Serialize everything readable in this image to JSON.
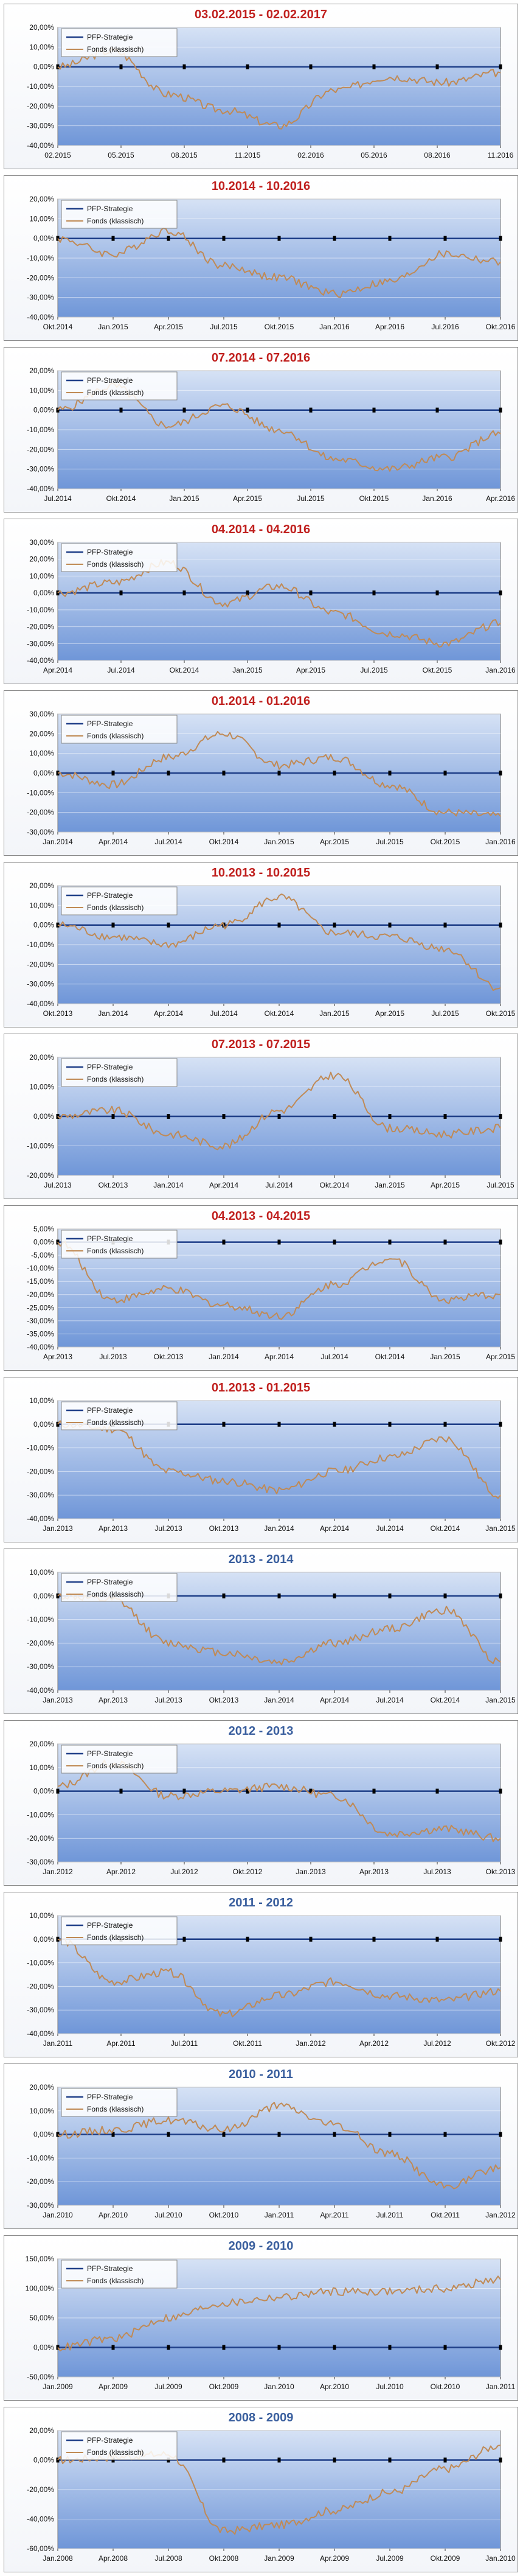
{
  "colors": {
    "plot_gradient_top": "#d6e2f5",
    "plot_gradient_bottom": "#6f96d8",
    "series_pfp": "#1f3f88",
    "series_fonds": "#c08a55",
    "title_red": "#c0201e",
    "title_blue": "#3a5f9e",
    "marker": "#000000"
  },
  "chart_data": [
    {
      "type": "line",
      "title": "03.02.2015 - 02.02.2017",
      "title_color": "red",
      "legend": [
        "PFP-Strategie",
        "Fonds (klassisch)"
      ],
      "y_ticks": [
        "20,00%",
        "10,00%",
        "0,00%",
        "-10,00%",
        "-20,00%",
        "-30,00%",
        "-40,00%"
      ],
      "ylim": [
        -40,
        20
      ],
      "x_ticks": [
        "02.2015",
        "05.2015",
        "08.2015",
        "11.2015",
        "02.2016",
        "05.2016",
        "08.2016",
        "11.2016"
      ],
      "grid": true,
      "legend_position": "top-left",
      "series": [
        {
          "name": "PFP-Strategie",
          "values": [
            0,
            0,
            0,
            0,
            0,
            0,
            0,
            0,
            0
          ]
        },
        {
          "name": "Fonds (klassisch)",
          "values": [
            0,
            8,
            -14,
            -22,
            -30,
            -12,
            -5,
            -8,
            -3
          ]
        }
      ]
    },
    {
      "type": "line",
      "title": "10.2014 - 10.2016",
      "title_color": "red",
      "legend": [
        "PFP-Strategie",
        "Fonds (klassisch)"
      ],
      "y_ticks": [
        "20,00%",
        "10,00%",
        "0,00%",
        "-10,00%",
        "-20,00%",
        "-30,00%",
        "-40,00%"
      ],
      "ylim": [
        -40,
        20
      ],
      "x_ticks": [
        "Okt.2014",
        "Jan.2015",
        "Apr.2015",
        "Jul.2015",
        "Okt.2015",
        "Jan.2016",
        "Apr.2016",
        "Jul.2016",
        "Okt.2016"
      ],
      "grid": true,
      "legend_position": "top-left",
      "series": [
        {
          "name": "PFP-Strategie",
          "values": [
            0,
            0,
            0,
            0,
            0,
            0,
            0,
            0,
            0
          ]
        },
        {
          "name": "Fonds (klassisch)",
          "values": [
            0,
            -8,
            4,
            -14,
            -20,
            -28,
            -22,
            -8,
            -12
          ]
        }
      ]
    },
    {
      "type": "line",
      "title": "07.2014 - 07.2016",
      "title_color": "red",
      "legend": [
        "PFP-Strategie",
        "Fonds (klassisch)"
      ],
      "y_ticks": [
        "20,00%",
        "10,00%",
        "0,00%",
        "-10,00%",
        "-20,00%",
        "-30,00%",
        "-40,00%"
      ],
      "ylim": [
        -40,
        20
      ],
      "x_ticks": [
        "Jul.2014",
        "Okt.2014",
        "Jan.2015",
        "Apr.2015",
        "Jul.2015",
        "Okt.2015",
        "Jan.2016",
        "Apr.2016"
      ],
      "grid": true,
      "legend_position": "top-left",
      "series": [
        {
          "name": "PFP-Strategie",
          "values": [
            0,
            0,
            0,
            0,
            0,
            0,
            0,
            0,
            0
          ]
        },
        {
          "name": "Fonds (klassisch)",
          "values": [
            0,
            12,
            -8,
            2,
            -10,
            -25,
            -30,
            -24,
            -12
          ]
        }
      ]
    },
    {
      "type": "line",
      "title": "04.2014 - 04.2016",
      "title_color": "red",
      "legend": [
        "PFP-Strategie",
        "Fonds (klassisch)"
      ],
      "y_ticks": [
        "30,00%",
        "20,00%",
        "10,00%",
        "0,00%",
        "-10,00%",
        "-20,00%",
        "-30,00%",
        "-40,00%"
      ],
      "ylim": [
        -40,
        30
      ],
      "x_ticks": [
        "Apr.2014",
        "Jul.2014",
        "Okt.2014",
        "Jan.2015",
        "Apr.2015",
        "Jul.2015",
        "Okt.2015",
        "Jan.2016"
      ],
      "grid": true,
      "legend_position": "top-left",
      "series": [
        {
          "name": "PFP-Strategie",
          "values": [
            0,
            0,
            0,
            0,
            0,
            0,
            0,
            0,
            0
          ]
        },
        {
          "name": "Fonds (klassisch)",
          "values": [
            0,
            6,
            18,
            -6,
            4,
            -12,
            -24,
            -30,
            -18
          ]
        }
      ]
    },
    {
      "type": "line",
      "title": "01.2014 - 01.2016",
      "title_color": "red",
      "legend": [
        "PFP-Strategie",
        "Fonds (klassisch)"
      ],
      "y_ticks": [
        "30,00%",
        "20,00%",
        "10,00%",
        "0,00%",
        "-10,00%",
        "-20,00%",
        "-30,00%"
      ],
      "ylim": [
        -30,
        30
      ],
      "x_ticks": [
        "Jan.2014",
        "Apr.2014",
        "Jul.2014",
        "Okt.2014",
        "Jan.2015",
        "Apr.2015",
        "Jul.2015",
        "Okt.2015",
        "Jan.2016"
      ],
      "grid": true,
      "legend_position": "top-left",
      "series": [
        {
          "name": "PFP-Strategie",
          "values": [
            0,
            0,
            0,
            0,
            0,
            0,
            0,
            0,
            0
          ]
        },
        {
          "name": "Fonds (klassisch)",
          "values": [
            0,
            -6,
            8,
            20,
            4,
            8,
            -6,
            -20,
            -22
          ]
        }
      ]
    },
    {
      "type": "line",
      "title": "10.2013 - 10.2015",
      "title_color": "red",
      "legend": [
        "PFP-Strategie",
        "Fonds (klassisch)"
      ],
      "y_ticks": [
        "20,00%",
        "10,00%",
        "0,00%",
        "-10,00%",
        "-20,00%",
        "-30,00%",
        "-40,00%"
      ],
      "ylim": [
        -40,
        20
      ],
      "x_ticks": [
        "Okt.2013",
        "Jan.2014",
        "Apr.2014",
        "Jul.2014",
        "Okt.2014",
        "Jan.2015",
        "Apr.2015",
        "Jul.2015",
        "Okt.2015"
      ],
      "grid": true,
      "legend_position": "top-left",
      "series": [
        {
          "name": "PFP-Strategie",
          "values": [
            0,
            0,
            0,
            0,
            0,
            0,
            0,
            0,
            0
          ]
        },
        {
          "name": "Fonds (klassisch)",
          "values": [
            0,
            -6,
            -10,
            0,
            14,
            -4,
            -6,
            -12,
            -32
          ]
        }
      ]
    },
    {
      "type": "line",
      "title": "07.2013 - 07.2015",
      "title_color": "red",
      "legend": [
        "PFP-Strategie",
        "Fonds (klassisch)"
      ],
      "y_ticks": [
        "20,00%",
        "10,00%",
        "0,00%",
        "-10,00%",
        "-20,00%"
      ],
      "ylim": [
        -20,
        20
      ],
      "x_ticks": [
        "Jul.2013",
        "Okt.2013",
        "Jan.2014",
        "Apr.2014",
        "Jul.2014",
        "Okt.2014",
        "Jan.2015",
        "Apr.2015",
        "Jul.2015"
      ],
      "grid": true,
      "legend_position": "top-left",
      "series": [
        {
          "name": "PFP-Strategie",
          "values": [
            0,
            0,
            0,
            0,
            0,
            0,
            0,
            0,
            0
          ]
        },
        {
          "name": "Fonds (klassisch)",
          "values": [
            0,
            2,
            -6,
            -10,
            2,
            14,
            -4,
            -6,
            -4
          ]
        }
      ]
    },
    {
      "type": "line",
      "title": "04.2013 - 04.2015",
      "title_color": "red",
      "legend": [
        "PFP-Strategie",
        "Fonds (klassisch)"
      ],
      "y_ticks": [
        "5,00%",
        "0,00%",
        "-5,00%",
        "-10,00%",
        "-15,00%",
        "-20,00%",
        "-25,00%",
        "-30,00%",
        "-35,00%",
        "-40,00%"
      ],
      "ylim": [
        -40,
        5
      ],
      "x_ticks": [
        "Apr.2013",
        "Jul.2013",
        "Okt.2013",
        "Jan.2014",
        "Apr.2014",
        "Jul.2014",
        "Okt.2014",
        "Jan.2015",
        "Apr.2015"
      ],
      "grid": true,
      "legend_position": "top-left",
      "series": [
        {
          "name": "PFP-Strategie",
          "values": [
            0,
            0,
            0,
            0,
            0,
            0,
            0,
            0,
            0
          ]
        },
        {
          "name": "Fonds (klassisch)",
          "values": [
            0,
            -22,
            -18,
            -24,
            -28,
            -16,
            -6,
            -22,
            -20
          ]
        }
      ]
    },
    {
      "type": "line",
      "title": "01.2013 - 01.2015",
      "title_color": "red",
      "legend": [
        "PFP-Strategie",
        "Fonds (klassisch)"
      ],
      "y_ticks": [
        "10,00%",
        "0,00%",
        "-10,00%",
        "-20,00%",
        "-30,00%",
        "-40,00%"
      ],
      "ylim": [
        -40,
        10
      ],
      "x_ticks": [
        "Jan.2013",
        "Apr.2013",
        "Jul.2013",
        "Okt.2013",
        "Jan.2014",
        "Apr.2014",
        "Jul.2014",
        "Okt.2014",
        "Jan.2015"
      ],
      "grid": true,
      "legend_position": "top-left",
      "series": [
        {
          "name": "PFP-Strategie",
          "values": [
            0,
            0,
            0,
            0,
            0,
            0,
            0,
            0,
            0
          ]
        },
        {
          "name": "Fonds (klassisch)",
          "values": [
            0,
            -2,
            -20,
            -24,
            -28,
            -20,
            -14,
            -6,
            -30
          ]
        }
      ]
    },
    {
      "type": "line",
      "title": "2013 - 2014",
      "title_color": "blue",
      "legend": [
        "PFP-Strategie",
        "Fonds (klassisch)"
      ],
      "y_ticks": [
        "10,00%",
        "0,00%",
        "-10,00%",
        "-20,00%",
        "-30,00%",
        "-40,00%"
      ],
      "ylim": [
        -40,
        10
      ],
      "x_ticks": [
        "Jan.2013",
        "Apr.2013",
        "Jul.2013",
        "Okt.2013",
        "Jan.2014",
        "Apr.2014",
        "Jul.2014",
        "Okt.2014",
        "Jan.2015"
      ],
      "grid": true,
      "legend_position": "top-left",
      "series": [
        {
          "name": "PFP-Strategie",
          "values": [
            0,
            0,
            0,
            0,
            0,
            0,
            0,
            0,
            0
          ]
        },
        {
          "name": "Fonds (klassisch)",
          "values": [
            0,
            -2,
            -20,
            -24,
            -28,
            -20,
            -14,
            -6,
            -28
          ]
        }
      ]
    },
    {
      "type": "line",
      "title": "2012 - 2013",
      "title_color": "blue",
      "legend": [
        "PFP-Strategie",
        "Fonds (klassisch)"
      ],
      "y_ticks": [
        "20,00%",
        "10,00%",
        "0,00%",
        "-10,00%",
        "-20,00%",
        "-30,00%"
      ],
      "ylim": [
        -30,
        20
      ],
      "x_ticks": [
        "Jan.2012",
        "Apr.2012",
        "Jul.2012",
        "Okt.2012",
        "Jan.2013",
        "Apr.2013",
        "Jul.2013",
        "Okt.2013"
      ],
      "grid": true,
      "legend_position": "top-left",
      "series": [
        {
          "name": "PFP-Strategie",
          "values": [
            0,
            0,
            0,
            0,
            0,
            0,
            0,
            0,
            0
          ]
        },
        {
          "name": "Fonds (klassisch)",
          "values": [
            2,
            12,
            -2,
            0,
            2,
            -2,
            -18,
            -16,
            -20
          ]
        }
      ]
    },
    {
      "type": "line",
      "title": "2011 - 2012",
      "title_color": "blue",
      "legend": [
        "PFP-Strategie",
        "Fonds (klassisch)"
      ],
      "y_ticks": [
        "10,00%",
        "0,00%",
        "-10,00%",
        "-20,00%",
        "-30,00%",
        "-40,00%"
      ],
      "ylim": [
        -40,
        10
      ],
      "x_ticks": [
        "Jan.2011",
        "Apr.2011",
        "Jul.2011",
        "Okt.2011",
        "Jan.2012",
        "Apr.2012",
        "Jul.2012",
        "Okt.2012"
      ],
      "grid": true,
      "legend_position": "top-left",
      "series": [
        {
          "name": "PFP-Strategie",
          "values": [
            0,
            0,
            0,
            0,
            0,
            0,
            0,
            0,
            0
          ]
        },
        {
          "name": "Fonds (klassisch)",
          "values": [
            0,
            -18,
            -14,
            -32,
            -24,
            -18,
            -24,
            -26,
            -22
          ]
        }
      ]
    },
    {
      "type": "line",
      "title": "2010 - 2011",
      "title_color": "blue",
      "legend": [
        "PFP-Strategie",
        "Fonds (klassisch)"
      ],
      "y_ticks": [
        "20,00%",
        "10,00%",
        "0,00%",
        "-10,00%",
        "-20,00%",
        "-30,00%"
      ],
      "ylim": [
        -30,
        20
      ],
      "x_ticks": [
        "Jan.2010",
        "Apr.2010",
        "Jul.2010",
        "Okt.2010",
        "Jan.2011",
        "Apr.2011",
        "Jul.2011",
        "Okt.2011",
        "Jan.2012"
      ],
      "grid": true,
      "legend_position": "top-left",
      "series": [
        {
          "name": "PFP-Strategie",
          "values": [
            0,
            0,
            0,
            0,
            0,
            0,
            0,
            0,
            0
          ]
        },
        {
          "name": "Fonds (klassisch)",
          "values": [
            0,
            2,
            6,
            2,
            12,
            4,
            -8,
            -22,
            -14
          ]
        }
      ]
    },
    {
      "type": "line",
      "title": "2009 - 2010",
      "title_color": "blue",
      "legend": [
        "PFP-Strategie",
        "Fonds (klassisch)"
      ],
      "y_ticks": [
        "150,00%",
        "100,00%",
        "50,00%",
        "0,00%",
        "-50,00%"
      ],
      "ylim": [
        -50,
        150
      ],
      "x_ticks": [
        "Jan.2009",
        "Apr.2009",
        "Jul.2009",
        "Okt.2009",
        "Jan.2010",
        "Apr.2010",
        "Jul.2010",
        "Okt.2010",
        "Jan.2011"
      ],
      "grid": true,
      "legend_position": "top-left",
      "series": [
        {
          "name": "PFP-Strategie",
          "values": [
            0,
            0,
            0,
            0,
            0,
            0,
            0,
            0,
            0
          ]
        },
        {
          "name": "Fonds (klassisch)",
          "values": [
            0,
            15,
            50,
            75,
            85,
            95,
            95,
            100,
            115
          ]
        }
      ]
    },
    {
      "type": "line",
      "title": "2008 - 2009",
      "title_color": "blue",
      "legend": [
        "PFP-Strategie",
        "Fonds (klassisch)"
      ],
      "y_ticks": [
        "20,00%",
        "0,00%",
        "-20,00%",
        "-40,00%",
        "-60,00%"
      ],
      "ylim": [
        -60,
        20
      ],
      "x_ticks": [
        "Jan.2008",
        "Apr.2008",
        "Jul.2008",
        "Okt.2008",
        "Jan.2009",
        "Apr.2009",
        "Jul.2009",
        "Okt.2009",
        "Jan.2010"
      ],
      "grid": true,
      "legend_position": "top-left",
      "series": [
        {
          "name": "PFP-Strategie",
          "values": [
            0,
            0,
            0,
            0,
            0,
            0,
            0,
            0,
            0
          ]
        },
        {
          "name": "Fonds (klassisch)",
          "values": [
            0,
            2,
            4,
            -48,
            -44,
            -34,
            -22,
            -6,
            10
          ]
        }
      ]
    }
  ]
}
